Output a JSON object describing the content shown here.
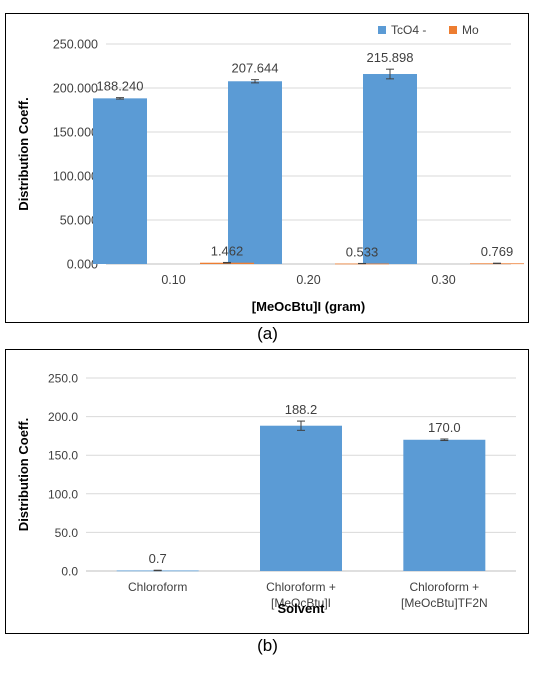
{
  "figures": [
    {
      "caption": "(a)"
    },
    {
      "caption": "(b)"
    }
  ],
  "chart_data": [
    {
      "type": "bar",
      "ylabel": "Distribution Coeff.",
      "xlabel": "[MeOcBtu]I (gram)",
      "categories": [
        "0.10",
        "0.20",
        "0.30"
      ],
      "ylim": [
        0,
        250
      ],
      "yticks": [
        "0.000",
        "50.000",
        "100.000",
        "150.000",
        "200.000",
        "250.000"
      ],
      "legend_position": "top-right",
      "series": [
        {
          "name": "TcO4 -",
          "color": "#5b9bd5",
          "values": [
            188.24,
            207.644,
            215.898
          ],
          "labels": [
            "188.240",
            "207.644",
            "215.898"
          ],
          "errors": [
            0.8,
            1.8,
            5.5
          ]
        },
        {
          "name": "Mo",
          "color": "#ed7d31",
          "values": [
            1.462,
            0.533,
            0.769
          ],
          "labels": [
            "1.462",
            "0.533",
            "0.769"
          ],
          "errors": [
            0.3,
            0.1,
            0.1
          ]
        }
      ]
    },
    {
      "type": "bar",
      "ylabel": "Distribution Coeff.",
      "xlabel": "Solvent",
      "categories": [
        [
          "Chloroform"
        ],
        [
          "Chloroform +",
          "[MeOcBtu]I"
        ],
        [
          "Chloroform +",
          "[MeOcBtu]TF2N"
        ]
      ],
      "ylim": [
        0,
        250
      ],
      "yticks": [
        "0.0",
        "50.0",
        "100.0",
        "150.0",
        "200.0",
        "250.0"
      ],
      "series": [
        {
          "color": "#5b9bd5",
          "values": [
            0.7,
            188.2,
            170.0
          ],
          "labels": [
            "0.7",
            "188.2",
            "170.0"
          ],
          "errors": [
            0.3,
            6.0,
            1.0
          ]
        }
      ]
    }
  ]
}
